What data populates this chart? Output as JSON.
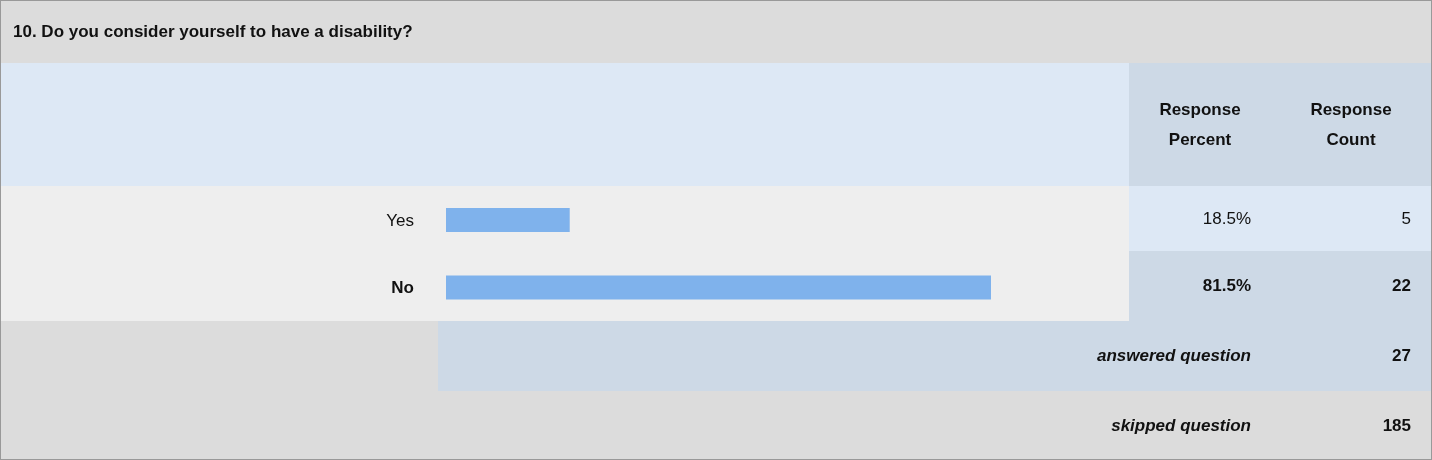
{
  "chart_data": {
    "type": "bar",
    "orientation": "horizontal",
    "title": "10. Do you consider yourself to have a disability?",
    "categories": [
      "Yes",
      "No"
    ],
    "values": [
      18.5,
      81.5
    ],
    "value_labels": [
      "18.5%",
      "81.5%"
    ],
    "color": "#7fb2ec",
    "annotations": [
      "Response Percent",
      "Response Count",
      "5",
      "22",
      "answered question",
      "27",
      "skipped question",
      "185"
    ]
  }
}
